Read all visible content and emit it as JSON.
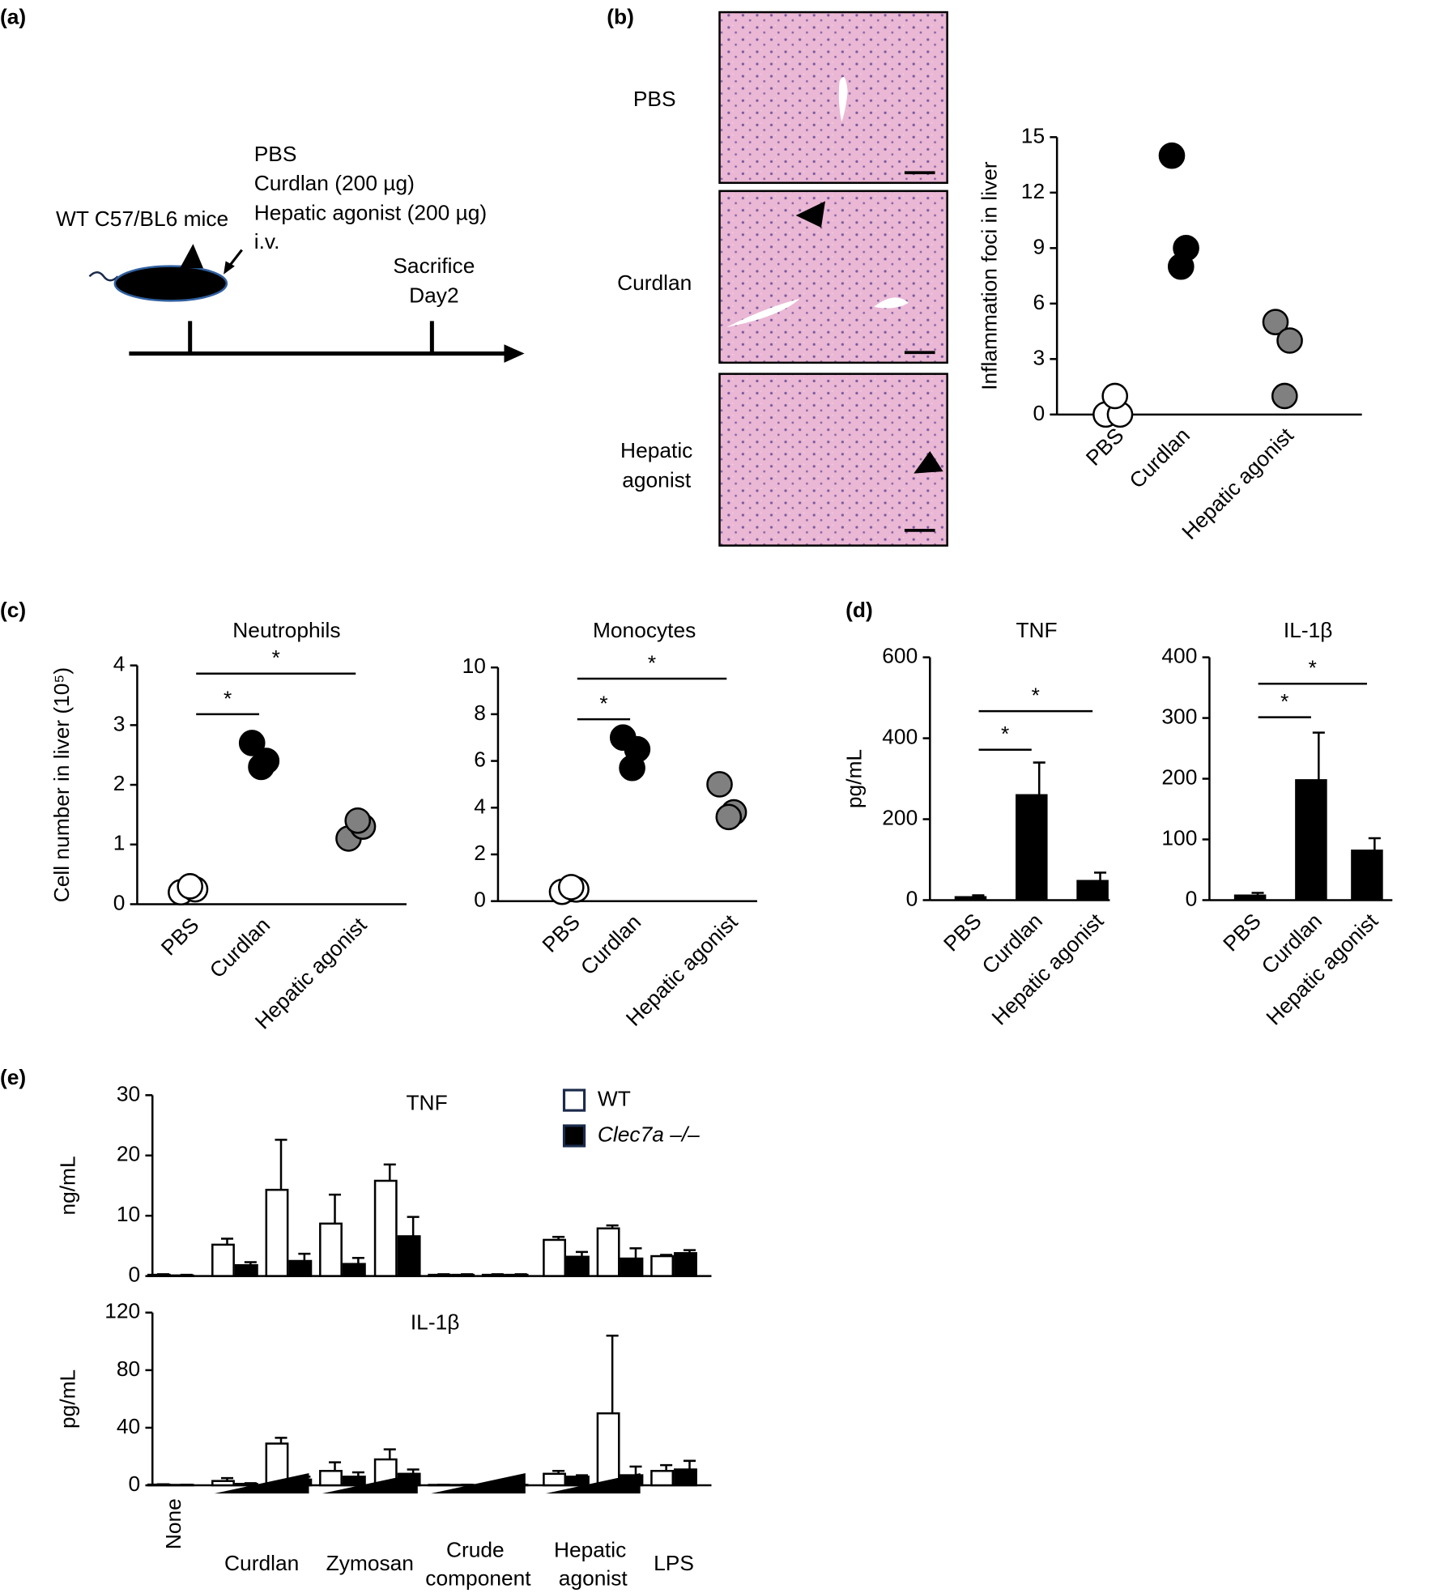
{
  "panel_labels": [
    "(a)",
    "(b)",
    "(c)",
    "(d)",
    "(e)"
  ],
  "diagram": {
    "mouse": "WT C57/BL6 mice",
    "treatments": [
      "PBS",
      "Curdlan (200 µg)",
      "Hepatic agonist (200 µg)",
      "i.v."
    ],
    "endpoint": [
      "Sacrifice",
      "Day2"
    ]
  },
  "micrographs": {
    "labels": [
      [
        "PBS"
      ],
      [
        "Curdlan"
      ],
      [
        "Hepatic",
        "agonist"
      ]
    ]
  },
  "chart_data": [
    {
      "type": "dot",
      "ylabel": "Inflammation foci in liver",
      "categories": [
        "PBS",
        "Curdlan",
        "Hepatic agonist"
      ],
      "values": [
        [
          0,
          0,
          1
        ],
        [
          14,
          9,
          8
        ],
        [
          5,
          4,
          1
        ]
      ],
      "colors": [
        "#ffffff",
        "#000000",
        "#808080"
      ],
      "ylim": [
        0,
        15
      ],
      "yticks": [
        0,
        3,
        6,
        9,
        12,
        15
      ]
    },
    {
      "type": "dot",
      "title": "Neutrophils",
      "ylabel": "Cell number in liver (10⁵)",
      "categories": [
        "PBS",
        "Curdlan",
        "Hepatic agonist"
      ],
      "values": [
        [
          0.2,
          0.25,
          0.3
        ],
        [
          2.7,
          2.4,
          2.3
        ],
        [
          1.1,
          1.3,
          1.4
        ]
      ],
      "colors": [
        "#ffffff",
        "#000000",
        "#808080"
      ],
      "ylim": [
        0,
        4
      ],
      "yticks": [
        0,
        1,
        2,
        3,
        4
      ],
      "significance": [
        "*",
        "*"
      ]
    },
    {
      "type": "dot",
      "title": "Monocytes",
      "categories": [
        "PBS",
        "Curdlan",
        "Hepatic agonist"
      ],
      "values": [
        [
          0.4,
          0.5,
          0.6
        ],
        [
          7,
          6.5,
          5.7
        ],
        [
          5,
          3.8,
          3.6
        ]
      ],
      "colors": [
        "#ffffff",
        "#000000",
        "#808080"
      ],
      "ylim": [
        0,
        10
      ],
      "yticks": [
        0,
        2,
        4,
        6,
        8,
        10
      ],
      "significance": [
        "*",
        "*"
      ]
    },
    {
      "type": "bar",
      "title": "TNF",
      "ylabel": "pg/mL",
      "categories": [
        "PBS",
        "Curdlan",
        "Hepatic agonist"
      ],
      "values": [
        8,
        260,
        48
      ],
      "errors": [
        4,
        80,
        20
      ],
      "color": "#000000",
      "ylim": [
        0,
        600
      ],
      "yticks": [
        0,
        200,
        400,
        600
      ],
      "significance": [
        "*",
        "*"
      ]
    },
    {
      "type": "bar",
      "title": "IL-1β",
      "categories": [
        "PBS",
        "Curdlan",
        "Hepatic agonist"
      ],
      "values": [
        8,
        198,
        82
      ],
      "errors": [
        4,
        78,
        20
      ],
      "color": "#000000",
      "ylim": [
        0,
        400
      ],
      "yticks": [
        0,
        100,
        200,
        300,
        400
      ],
      "significance": [
        "*",
        "*"
      ]
    },
    {
      "type": "grouped_bar",
      "title": "TNF",
      "ylabel": "ng/mL",
      "series": [
        {
          "name": "WT",
          "color": "#ffffff",
          "values": [
            0.2,
            5.2,
            14.3,
            8.7,
            15.8,
            0.2,
            0.2,
            6.0,
            7.9,
            3.3
          ],
          "errors": [
            0.1,
            1,
            8.3,
            4.8,
            2.7,
            0.1,
            0.1,
            0.5,
            0.5,
            0.2
          ]
        },
        {
          "name": "Clec7a –/–",
          "color": "#000000",
          "values": [
            0.1,
            1.8,
            2.5,
            2.0,
            6.6,
            0.2,
            0.2,
            3.2,
            2.9,
            3.8
          ],
          "errors": [
            0.1,
            0.5,
            1.2,
            1,
            3.2,
            0.1,
            0.1,
            0.8,
            1.7,
            0.5
          ]
        }
      ],
      "ylim": [
        0,
        30
      ],
      "yticks": [
        0,
        10,
        20,
        30
      ],
      "legend": "top-right"
    },
    {
      "type": "grouped_bar",
      "title": "IL-1β",
      "ylabel": "pg/mL",
      "categories": [
        "None",
        "Curdlan",
        null,
        "Zymosan",
        null,
        "Crude component",
        null,
        "Hepatic agonist",
        null,
        "LPS"
      ],
      "series": [
        {
          "color": "#ffffff",
          "values": [
            0.5,
            3,
            29,
            10,
            18,
            0.3,
            0.3,
            8,
            50,
            10
          ],
          "errors": [
            0.2,
            2,
            4,
            6,
            7,
            0.1,
            0.1,
            2,
            54,
            4
          ]
        },
        {
          "color": "#000000",
          "values": [
            0.3,
            1,
            4,
            6,
            8,
            0.3,
            0.3,
            6,
            7,
            11
          ],
          "errors": [
            0.1,
            0.5,
            2,
            3,
            3,
            0.1,
            0.1,
            1,
            6,
            6
          ]
        }
      ],
      "ylim": [
        0,
        120
      ],
      "yticks": [
        0,
        40,
        80,
        120
      ]
    }
  ]
}
